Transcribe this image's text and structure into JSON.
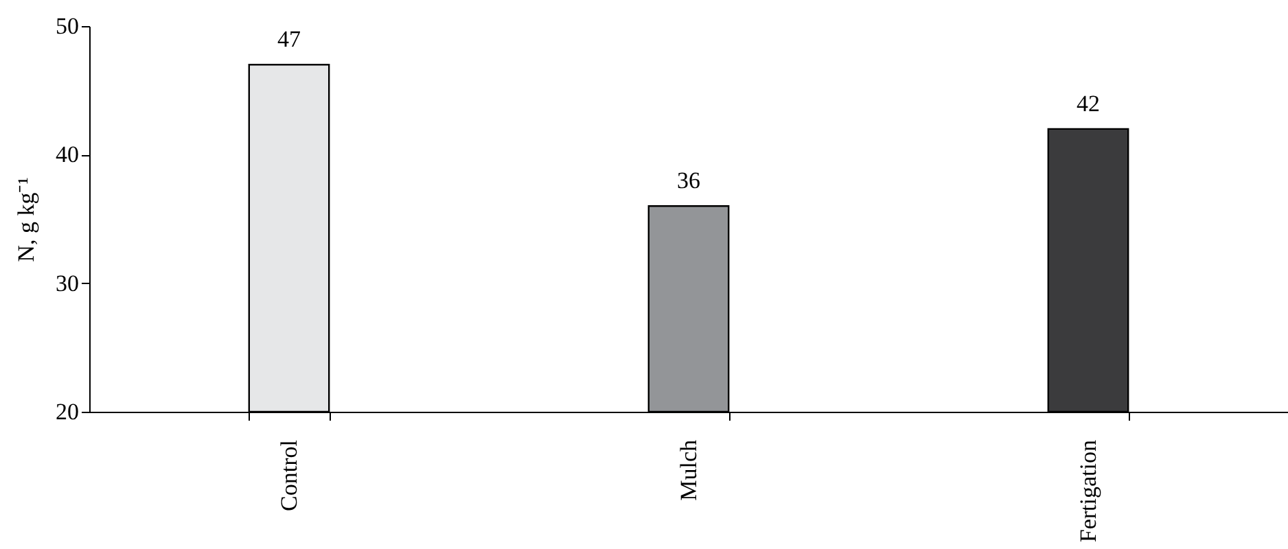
{
  "chart_data": {
    "type": "bar",
    "ylabel": "N, g kg⁻¹",
    "categories": [
      "Control",
      "Mulch",
      "Fertigation"
    ],
    "values": [
      47,
      36,
      42
    ],
    "colors": [
      "#e6e7e8",
      "#939598",
      "#3b3b3d"
    ],
    "ylim": [
      20,
      50
    ],
    "yticks": [
      20,
      30,
      40,
      50
    ],
    "grid": false,
    "data_labels": true
  }
}
